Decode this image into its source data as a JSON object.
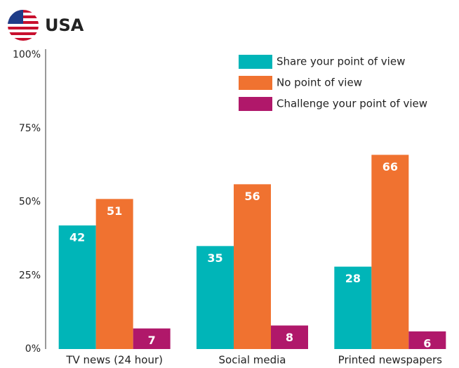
{
  "chart_data": {
    "type": "bar",
    "title": "USA",
    "categories": [
      "TV news (24 hour)",
      "Social media",
      "Printed newspapers"
    ],
    "series": [
      {
        "name": "Share your point of view",
        "color": "#00b5b8",
        "values": [
          42,
          35,
          28
        ]
      },
      {
        "name": "No point of view",
        "color": "#f07230",
        "values": [
          51,
          56,
          66
        ]
      },
      {
        "name": "Challenge your point of view",
        "color": "#b0186a",
        "values": [
          7,
          8,
          6
        ]
      }
    ],
    "ylim": [
      0,
      100
    ],
    "yticks": [
      {
        "value": 0,
        "label": "0%"
      },
      {
        "value": 25,
        "label": "25%"
      },
      {
        "value": 50,
        "label": "50%"
      },
      {
        "value": 75,
        "label": "75%"
      },
      {
        "value": 100,
        "label": "100%"
      }
    ],
    "legend": "top-right",
    "grid": false
  }
}
